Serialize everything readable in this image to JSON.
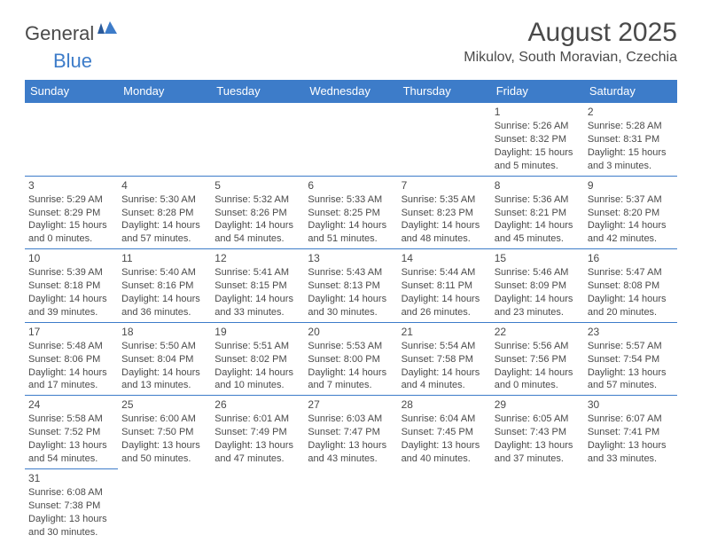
{
  "logo": {
    "text1": "General",
    "text2": "Blue"
  },
  "title": "August 2025",
  "location": "Mikulov, South Moravian, Czechia",
  "colors": {
    "headerBg": "#3d7cc9",
    "headerText": "#ffffff",
    "border": "#3d7cc9",
    "text": "#4a4a4a"
  },
  "dayNames": [
    "Sunday",
    "Monday",
    "Tuesday",
    "Wednesday",
    "Thursday",
    "Friday",
    "Saturday"
  ],
  "weeks": [
    [
      null,
      null,
      null,
      null,
      null,
      {
        "n": "1",
        "sr": "5:26 AM",
        "ss": "8:32 PM",
        "dl": "15 hours and 5 minutes."
      },
      {
        "n": "2",
        "sr": "5:28 AM",
        "ss": "8:31 PM",
        "dl": "15 hours and 3 minutes."
      }
    ],
    [
      {
        "n": "3",
        "sr": "5:29 AM",
        "ss": "8:29 PM",
        "dl": "15 hours and 0 minutes."
      },
      {
        "n": "4",
        "sr": "5:30 AM",
        "ss": "8:28 PM",
        "dl": "14 hours and 57 minutes."
      },
      {
        "n": "5",
        "sr": "5:32 AM",
        "ss": "8:26 PM",
        "dl": "14 hours and 54 minutes."
      },
      {
        "n": "6",
        "sr": "5:33 AM",
        "ss": "8:25 PM",
        "dl": "14 hours and 51 minutes."
      },
      {
        "n": "7",
        "sr": "5:35 AM",
        "ss": "8:23 PM",
        "dl": "14 hours and 48 minutes."
      },
      {
        "n": "8",
        "sr": "5:36 AM",
        "ss": "8:21 PM",
        "dl": "14 hours and 45 minutes."
      },
      {
        "n": "9",
        "sr": "5:37 AM",
        "ss": "8:20 PM",
        "dl": "14 hours and 42 minutes."
      }
    ],
    [
      {
        "n": "10",
        "sr": "5:39 AM",
        "ss": "8:18 PM",
        "dl": "14 hours and 39 minutes."
      },
      {
        "n": "11",
        "sr": "5:40 AM",
        "ss": "8:16 PM",
        "dl": "14 hours and 36 minutes."
      },
      {
        "n": "12",
        "sr": "5:41 AM",
        "ss": "8:15 PM",
        "dl": "14 hours and 33 minutes."
      },
      {
        "n": "13",
        "sr": "5:43 AM",
        "ss": "8:13 PM",
        "dl": "14 hours and 30 minutes."
      },
      {
        "n": "14",
        "sr": "5:44 AM",
        "ss": "8:11 PM",
        "dl": "14 hours and 26 minutes."
      },
      {
        "n": "15",
        "sr": "5:46 AM",
        "ss": "8:09 PM",
        "dl": "14 hours and 23 minutes."
      },
      {
        "n": "16",
        "sr": "5:47 AM",
        "ss": "8:08 PM",
        "dl": "14 hours and 20 minutes."
      }
    ],
    [
      {
        "n": "17",
        "sr": "5:48 AM",
        "ss": "8:06 PM",
        "dl": "14 hours and 17 minutes."
      },
      {
        "n": "18",
        "sr": "5:50 AM",
        "ss": "8:04 PM",
        "dl": "14 hours and 13 minutes."
      },
      {
        "n": "19",
        "sr": "5:51 AM",
        "ss": "8:02 PM",
        "dl": "14 hours and 10 minutes."
      },
      {
        "n": "20",
        "sr": "5:53 AM",
        "ss": "8:00 PM",
        "dl": "14 hours and 7 minutes."
      },
      {
        "n": "21",
        "sr": "5:54 AM",
        "ss": "7:58 PM",
        "dl": "14 hours and 4 minutes."
      },
      {
        "n": "22",
        "sr": "5:56 AM",
        "ss": "7:56 PM",
        "dl": "14 hours and 0 minutes."
      },
      {
        "n": "23",
        "sr": "5:57 AM",
        "ss": "7:54 PM",
        "dl": "13 hours and 57 minutes."
      }
    ],
    [
      {
        "n": "24",
        "sr": "5:58 AM",
        "ss": "7:52 PM",
        "dl": "13 hours and 54 minutes."
      },
      {
        "n": "25",
        "sr": "6:00 AM",
        "ss": "7:50 PM",
        "dl": "13 hours and 50 minutes."
      },
      {
        "n": "26",
        "sr": "6:01 AM",
        "ss": "7:49 PM",
        "dl": "13 hours and 47 minutes."
      },
      {
        "n": "27",
        "sr": "6:03 AM",
        "ss": "7:47 PM",
        "dl": "13 hours and 43 minutes."
      },
      {
        "n": "28",
        "sr": "6:04 AM",
        "ss": "7:45 PM",
        "dl": "13 hours and 40 minutes."
      },
      {
        "n": "29",
        "sr": "6:05 AM",
        "ss": "7:43 PM",
        "dl": "13 hours and 37 minutes."
      },
      {
        "n": "30",
        "sr": "6:07 AM",
        "ss": "7:41 PM",
        "dl": "13 hours and 33 minutes."
      }
    ],
    [
      {
        "n": "31",
        "sr": "6:08 AM",
        "ss": "7:38 PM",
        "dl": "13 hours and 30 minutes."
      },
      null,
      null,
      null,
      null,
      null,
      null
    ]
  ],
  "labels": {
    "sunrise": "Sunrise:",
    "sunset": "Sunset:",
    "daylight": "Daylight:"
  }
}
